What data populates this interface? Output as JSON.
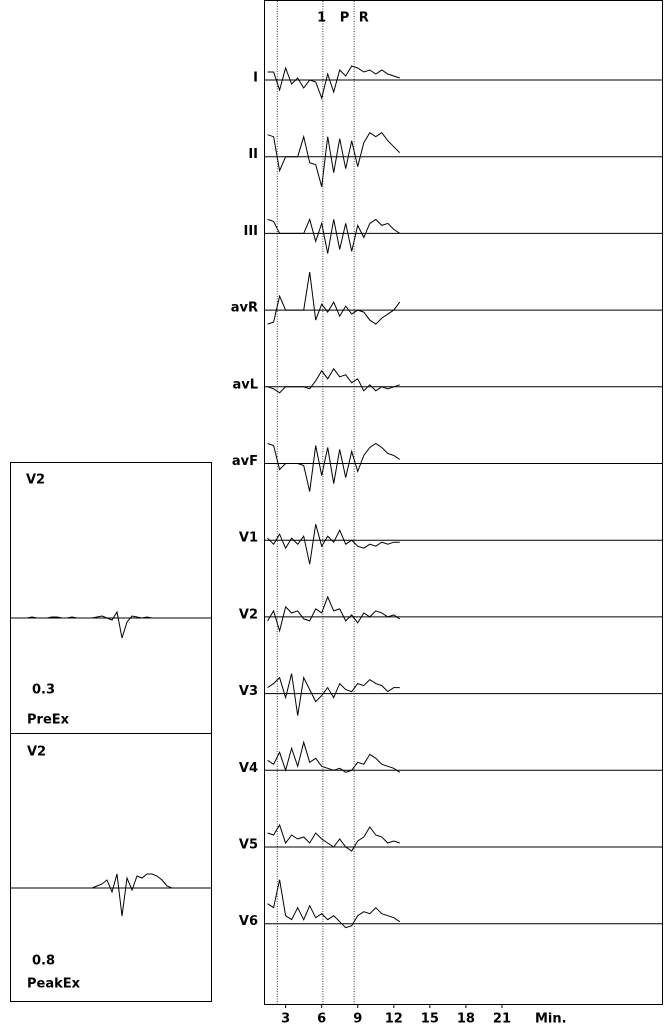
{
  "chart_data": [
    {
      "type": "trend",
      "x": [
        1.5,
        2,
        2.5,
        3,
        3.5,
        4,
        4.5,
        5,
        5.5,
        6,
        6.5,
        7,
        7.5,
        8,
        8.5,
        9,
        9.5,
        10,
        10.5,
        11,
        11.5,
        12,
        12.5
      ],
      "xlim": [
        1.2,
        34.4
      ],
      "xticks": [
        3,
        6,
        9,
        12,
        15,
        18,
        21
      ],
      "x_label": "Min.",
      "markers": [
        2.3,
        6.1,
        8.7
      ],
      "events": [
        {
          "label": "1",
          "x": 6.0
        },
        {
          "label": "P",
          "x": 7.9
        },
        {
          "label": "R",
          "x": 9.5
        }
      ],
      "series": [
        {
          "name": "I",
          "color": "#000000",
          "values": [
            8,
            8,
            -10,
            12,
            -4,
            2,
            -8,
            0,
            -2,
            -18,
            6,
            -12,
            10,
            4,
            14,
            12,
            8,
            10,
            6,
            10,
            6,
            4,
            2
          ]
        },
        {
          "name": "II",
          "color": "#000000",
          "values": [
            22,
            20,
            -14,
            0,
            0,
            0,
            20,
            -6,
            -8,
            -30,
            20,
            -16,
            18,
            -12,
            16,
            -10,
            14,
            24,
            20,
            24,
            16,
            10,
            4
          ]
        },
        {
          "name": "III",
          "color": "#000000",
          "values": [
            14,
            12,
            0,
            0,
            0,
            0,
            0,
            14,
            -8,
            10,
            -20,
            14,
            -16,
            10,
            -18,
            8,
            -4,
            10,
            14,
            8,
            10,
            4,
            0
          ]
        },
        {
          "name": "avR",
          "color": "#000000",
          "values": [
            -14,
            -12,
            14,
            0,
            0,
            0,
            0,
            38,
            -10,
            6,
            -2,
            8,
            -6,
            4,
            -4,
            0,
            -2,
            -10,
            -14,
            -8,
            -4,
            0,
            8
          ]
        },
        {
          "name": "avL",
          "color": "#000000",
          "values": [
            0,
            -2,
            -6,
            0,
            0,
            0,
            0,
            -2,
            6,
            16,
            8,
            18,
            10,
            12,
            4,
            8,
            -4,
            2,
            -4,
            0,
            -2,
            0,
            2
          ]
        },
        {
          "name": "avF",
          "color": "#000000",
          "values": [
            20,
            18,
            -6,
            0,
            0,
            0,
            -2,
            -28,
            18,
            -12,
            16,
            -20,
            14,
            -14,
            12,
            -8,
            8,
            16,
            20,
            16,
            10,
            8,
            4
          ]
        },
        {
          "name": "V1",
          "color": "#000000",
          "values": [
            2,
            -4,
            6,
            -8,
            2,
            -4,
            4,
            -24,
            16,
            -6,
            4,
            -2,
            10,
            -4,
            0,
            -6,
            -8,
            -4,
            -6,
            -2,
            -4,
            -2,
            -2
          ]
        },
        {
          "name": "V2",
          "color": "#000000",
          "values": [
            -4,
            6,
            -14,
            10,
            4,
            6,
            -2,
            -4,
            8,
            4,
            20,
            6,
            8,
            -4,
            2,
            -6,
            4,
            0,
            6,
            4,
            0,
            2,
            -2
          ]
        },
        {
          "name": "V3",
          "color": "#000000",
          "values": [
            6,
            10,
            16,
            -4,
            20,
            -22,
            16,
            4,
            -8,
            -2,
            6,
            -4,
            10,
            4,
            2,
            10,
            8,
            14,
            10,
            8,
            2,
            6,
            6
          ]
        },
        {
          "name": "V4",
          "color": "#000000",
          "values": [
            10,
            6,
            18,
            0,
            22,
            4,
            28,
            8,
            12,
            4,
            2,
            0,
            2,
            -2,
            0,
            8,
            6,
            16,
            12,
            6,
            4,
            2,
            -2
          ]
        },
        {
          "name": "V5",
          "color": "#000000",
          "values": [
            14,
            12,
            22,
            4,
            12,
            8,
            10,
            4,
            14,
            8,
            4,
            0,
            8,
            0,
            -4,
            6,
            10,
            20,
            12,
            10,
            4,
            6,
            4
          ]
        },
        {
          "name": "V6",
          "color": "#000000",
          "values": [
            20,
            16,
            44,
            8,
            4,
            16,
            4,
            18,
            6,
            10,
            4,
            8,
            2,
            -4,
            -2,
            8,
            12,
            10,
            16,
            10,
            8,
            6,
            2
          ]
        }
      ]
    },
    {
      "type": "beat",
      "title": "V2",
      "st_value": 0.3,
      "subtitle": "PreEx",
      "color": "#000000",
      "values": [
        0,
        0,
        0,
        0,
        1,
        0,
        0,
        0,
        1,
        1,
        0,
        0,
        1,
        0,
        0,
        0,
        0,
        1,
        2,
        0,
        -2,
        6,
        -20,
        -4,
        2,
        1,
        0,
        1,
        0,
        0,
        0,
        0,
        0,
        0,
        0,
        0,
        0,
        0,
        0,
        0
      ]
    },
    {
      "type": "beat",
      "title": "V2",
      "st_value": 0.8,
      "subtitle": "PeakEx",
      "color": "#000000",
      "values": [
        0,
        0,
        0,
        0,
        0,
        0,
        0,
        0,
        0,
        0,
        0,
        0,
        0,
        0,
        0,
        0,
        0,
        2,
        4,
        8,
        -4,
        14,
        -28,
        10,
        -2,
        12,
        10,
        14,
        14,
        12,
        8,
        2,
        0,
        0,
        0,
        0,
        0,
        0,
        0,
        0
      ]
    }
  ]
}
